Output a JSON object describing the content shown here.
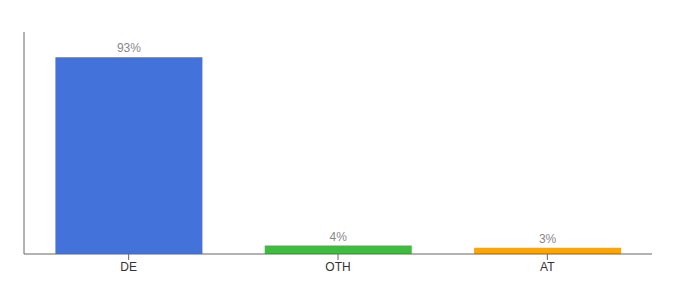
{
  "chart_data": {
    "type": "bar",
    "categories": [
      "DE",
      "OTH",
      "AT"
    ],
    "values": [
      93,
      4,
      3
    ],
    "value_labels": [
      "93%",
      "4%",
      "3%"
    ],
    "colors": [
      "#4472DB",
      "#3DBD3D",
      "#FFA500"
    ],
    "ylim": [
      0,
      105
    ],
    "data_labels": true,
    "tick_labels": "x",
    "grid": false
  }
}
